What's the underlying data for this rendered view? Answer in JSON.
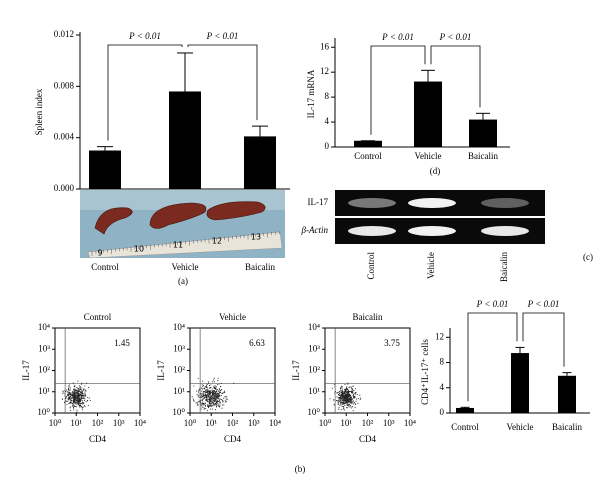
{
  "chart_data": [
    {
      "type": "bar",
      "ylabel": "Spleen index",
      "categories": [
        "Control",
        "Vehicle",
        "Baicalin"
      ],
      "values": [
        0.003,
        0.0076,
        0.0041
      ],
      "errors": [
        0.0003,
        0.003,
        0.0008
      ],
      "color": "#000000",
      "ylim": [
        0,
        0.012
      ],
      "yticks": [
        {
          "value": 0,
          "label": "0.000"
        },
        {
          "value": 0.004,
          "label": "0.004"
        },
        {
          "value": 0.008,
          "label": "0.008"
        },
        {
          "value": 0.012,
          "label": "0.012"
        }
      ],
      "annotations": [
        "P < 0.01",
        "P < 0.01"
      ],
      "ruler_labels": [
        "9",
        "10",
        "11",
        "12",
        "13"
      ],
      "label": "(a)"
    },
    {
      "type": "bar",
      "ylabel": "IL-17 mRNA",
      "categories": [
        "Control",
        "Vehicle",
        "Baicalin"
      ],
      "values": [
        1,
        10.5,
        4.4
      ],
      "errors": [
        0,
        1.8,
        1.0
      ],
      "color": "#000000",
      "ylim": [
        0,
        17
      ],
      "yticks": [
        0,
        4,
        8,
        12,
        16
      ],
      "annotations": [
        "P < 0.01",
        "P < 0.01"
      ],
      "label": "(d)"
    },
    {
      "type": "scatter",
      "title": "Control",
      "quadrant_value": 1.45,
      "xlabel": "CD4",
      "ylabel": "IL-17",
      "log": true,
      "xlim": [
        1,
        10000
      ],
      "ylim": [
        1,
        10000
      ],
      "gate": {
        "x": 3,
        "y": 24
      },
      "xticks": [
        {
          "value": 1,
          "label": "10⁰"
        },
        {
          "value": 10,
          "label": "10¹"
        },
        {
          "value": 100,
          "label": "10²"
        },
        {
          "value": 1000,
          "label": "10³"
        },
        {
          "value": 10000,
          "label": "10⁴"
        }
      ],
      "yticks": [
        {
          "value": 1,
          "label": "10⁰"
        },
        {
          "value": 10,
          "label": "10¹"
        },
        {
          "value": 100,
          "label": "10²"
        },
        {
          "value": 1000,
          "label": "10³"
        },
        {
          "value": 10000,
          "label": "10⁴"
        }
      ]
    },
    {
      "type": "scatter",
      "title": "Vehicle",
      "quadrant_value": 6.63,
      "xlabel": "CD4",
      "ylabel": "IL-17",
      "log": true,
      "xlim": [
        1,
        10000
      ],
      "ylim": [
        1,
        10000
      ],
      "gate": {
        "x": 3,
        "y": 24
      },
      "xticks": [
        {
          "value": 1,
          "label": "10⁰"
        },
        {
          "value": 10,
          "label": "10¹"
        },
        {
          "value": 100,
          "label": "10²"
        },
        {
          "value": 1000,
          "label": "10³"
        },
        {
          "value": 10000,
          "label": "10⁴"
        }
      ],
      "yticks": [
        {
          "value": 1,
          "label": "10⁰"
        },
        {
          "value": 10,
          "label": "10¹"
        },
        {
          "value": 100,
          "label": "10²"
        },
        {
          "value": 1000,
          "label": "10³"
        },
        {
          "value": 10000,
          "label": "10⁴"
        }
      ]
    },
    {
      "type": "scatter",
      "title": "Baicalin",
      "quadrant_value": 3.75,
      "xlabel": "CD4",
      "ylabel": "IL-17",
      "log": true,
      "xlim": [
        1,
        10000
      ],
      "ylim": [
        1,
        10000
      ],
      "gate": {
        "x": 3,
        "y": 24
      },
      "xticks": [
        {
          "value": 1,
          "label": "10⁰"
        },
        {
          "value": 10,
          "label": "10¹"
        },
        {
          "value": 100,
          "label": "10²"
        },
        {
          "value": 1000,
          "label": "10³"
        },
        {
          "value": 10000,
          "label": "10⁴"
        }
      ],
      "yticks": [
        {
          "value": 1,
          "label": "10⁰"
        },
        {
          "value": 10,
          "label": "10¹"
        },
        {
          "value": 100,
          "label": "10²"
        },
        {
          "value": 1000,
          "label": "10³"
        },
        {
          "value": 10000,
          "label": "10⁴"
        }
      ]
    },
    {
      "type": "bar",
      "ylabel": "CD4⁺IL-17⁺ cells",
      "categories": [
        "Control",
        "Vehicle",
        "Baicalin"
      ],
      "values": [
        0.8,
        9.5,
        5.9
      ],
      "errors": [
        0.1,
        0.9,
        0.5
      ],
      "color": "#000000",
      "ylim": [
        0,
        13
      ],
      "yticks": [
        0,
        4,
        8,
        12
      ],
      "annotations": [
        "P < 0.01",
        "P < 0.01"
      ]
    }
  ],
  "gel": {
    "rows": [
      "IL-17",
      "β-Actin"
    ],
    "lanes": [
      "Control",
      "Vehicle",
      "Baicalin"
    ],
    "label": "(c)"
  },
  "panel_b_label": "(b)"
}
